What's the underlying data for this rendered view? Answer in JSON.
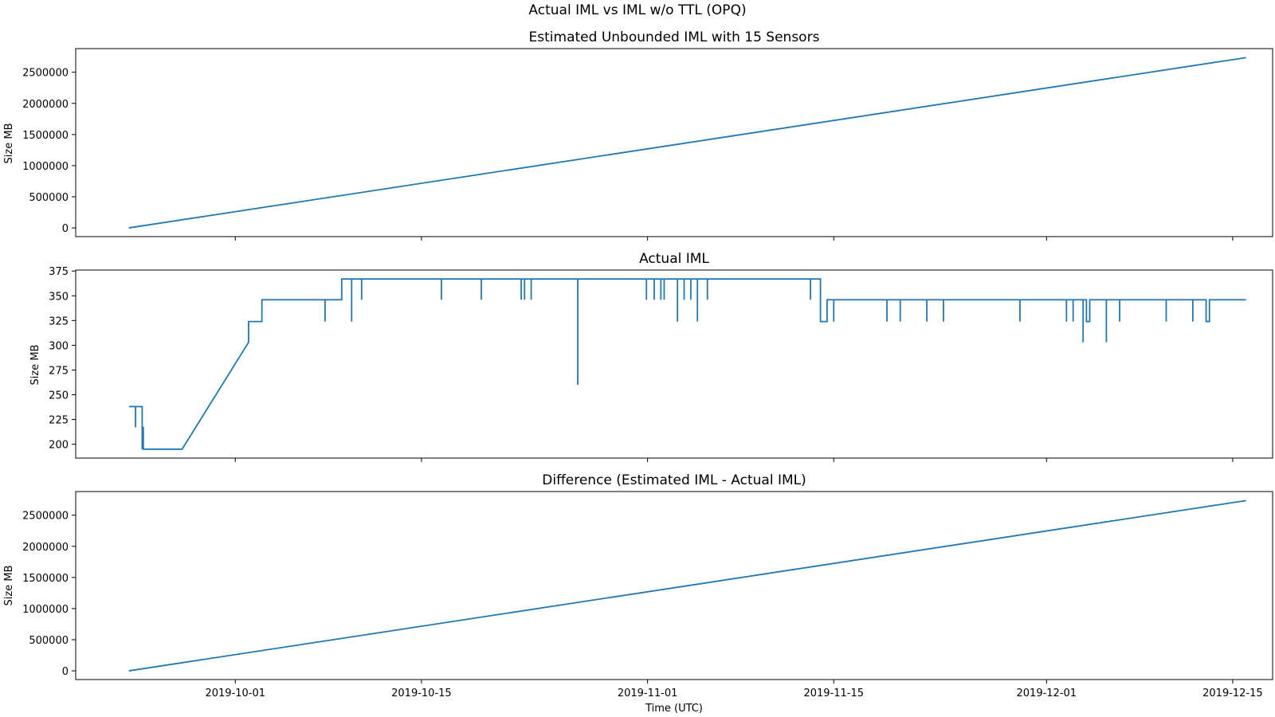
{
  "figure_title": "Actual IML vs IML w/o TTL (OPQ)",
  "xlabel": "Time (UTC)",
  "chart_data": [
    {
      "type": "line",
      "title": "Estimated Unbounded IML with 15 Sensors",
      "xlabel": "",
      "ylabel": "Size MB",
      "x_range": [
        "2019-09-19",
        "2019-12-18"
      ],
      "ylim": [
        -140000,
        2880000
      ],
      "yticks": [
        0,
        500000,
        1000000,
        1500000,
        2000000,
        2500000
      ],
      "xticks": [
        "2019-10-01",
        "2019-10-15",
        "2019-11-01",
        "2019-11-15",
        "2019-12-01",
        "2019-12-15"
      ],
      "show_xtick_labels": false,
      "grid": false,
      "series": [
        {
          "x": [
            "2019-09-23",
            "2019-12-16"
          ],
          "y": [
            0,
            2735000
          ]
        }
      ]
    },
    {
      "type": "line",
      "title": "Actual IML",
      "xlabel": "",
      "ylabel": "Size MB",
      "x_range": [
        "2019-09-19",
        "2019-12-18"
      ],
      "ylim": [
        186,
        376
      ],
      "yticks": [
        200,
        225,
        250,
        275,
        300,
        325,
        350,
        375
      ],
      "xticks": [
        "2019-10-01",
        "2019-10-15",
        "2019-11-01",
        "2019-11-15",
        "2019-12-01",
        "2019-12-15"
      ],
      "show_xtick_labels": false,
      "grid": false,
      "series": [
        {
          "x": [
            "2019-09-23",
            "2019-09-23 12:00",
            "2019-09-23 12:00",
            "2019-09-23 12:00",
            "2019-09-24",
            "2019-09-24",
            "2019-09-24",
            "2019-09-24 02:00",
            "2019-09-24 02:00",
            "2019-09-24 02:00",
            "2019-09-24 04:00",
            "2019-09-24 04:00",
            "2019-09-27",
            "2019-10-02",
            "2019-10-02",
            "2019-10-02",
            "2019-10-03",
            "2019-10-03",
            "2019-10-07 18:00",
            "2019-10-07 18:00",
            "2019-10-07 18:00",
            "2019-10-09",
            "2019-10-09",
            "2019-10-09 18:00",
            "2019-10-09 18:00",
            "2019-10-09 18:00",
            "2019-10-10 12:00",
            "2019-10-10 12:00",
            "2019-10-10 12:00",
            "2019-10-16 12:00",
            "2019-10-16 12:00",
            "2019-10-16 12:00",
            "2019-10-19 12:00",
            "2019-10-19 12:00",
            "2019-10-19 12:00",
            "2019-10-22 12:00",
            "2019-10-22 12:00",
            "2019-10-22 12:00",
            "2019-10-22 18:00",
            "2019-10-22 18:00",
            "2019-10-22 18:00",
            "2019-10-23 06:00",
            "2019-10-23 06:00",
            "2019-10-23 06:00",
            "2019-10-26 18:00",
            "2019-10-26 18:00",
            "2019-10-26 18:00",
            "2019-10-31 22:00",
            "2019-10-31 22:00",
            "2019-10-31 22:00",
            "2019-11-01 12:00",
            "2019-11-01 12:00",
            "2019-11-01 12:00",
            "2019-11-02",
            "2019-11-02",
            "2019-11-02",
            "2019-11-02 06:00",
            "2019-11-02 06:00",
            "2019-11-02 06:00",
            "2019-11-03 06:00",
            "2019-11-03 06:00",
            "2019-11-03 06:00",
            "2019-11-03 18:00",
            "2019-11-03 18:00",
            "2019-11-03 18:00",
            "2019-11-04 06:00",
            "2019-11-04 06:00",
            "2019-11-04 06:00",
            "2019-11-04 18:00",
            "2019-11-04 18:00",
            "2019-11-04 18:00",
            "2019-11-05 12:00",
            "2019-11-05 12:00",
            "2019-11-05 12:00",
            "2019-11-13 06:00",
            "2019-11-13 06:00",
            "2019-11-13 06:00",
            "2019-11-14",
            "2019-11-14",
            "2019-11-14 12:00",
            "2019-11-14 12:00",
            "2019-11-15",
            "2019-11-15",
            "2019-11-15",
            "2019-11-19",
            "2019-11-19",
            "2019-11-19",
            "2019-11-20",
            "2019-11-20",
            "2019-11-20",
            "2019-11-22",
            "2019-11-22",
            "2019-11-22",
            "2019-11-23 06:00",
            "2019-11-23 06:00",
            "2019-11-23 06:00",
            "2019-11-29",
            "2019-11-29",
            "2019-11-29",
            "2019-12-02 12:00",
            "2019-12-02 12:00",
            "2019-12-02 12:00",
            "2019-12-03",
            "2019-12-03",
            "2019-12-03",
            "2019-12-03 18:00",
            "2019-12-03 18:00",
            "2019-12-03 18:00",
            "2019-12-04",
            "2019-12-04",
            "2019-12-04 06:00",
            "2019-12-04 06:00",
            "2019-12-05 12:00",
            "2019-12-05 12:00",
            "2019-12-05 12:00",
            "2019-12-06 12:00",
            "2019-12-06 12:00",
            "2019-12-06 12:00",
            "2019-12-10",
            "2019-12-10",
            "2019-12-10",
            "2019-12-12",
            "2019-12-12",
            "2019-12-12",
            "2019-12-13",
            "2019-12-13",
            "2019-12-13 06:00",
            "2019-12-13 06:00",
            "2019-12-16"
          ],
          "y": [
            238,
            238,
            217,
            238,
            238,
            195,
            217,
            217,
            195,
            195,
            195,
            195,
            195,
            303,
            324,
            324,
            324,
            346,
            346,
            324,
            346,
            346,
            367,
            367,
            324,
            367,
            367,
            346,
            367,
            367,
            346,
            367,
            367,
            346,
            367,
            367,
            346,
            367,
            367,
            346,
            367,
            367,
            346,
            367,
            367,
            260,
            367,
            367,
            346,
            367,
            367,
            346,
            367,
            367,
            346,
            367,
            367,
            346,
            367,
            367,
            324,
            367,
            367,
            346,
            367,
            367,
            346,
            367,
            367,
            324,
            367,
            367,
            346,
            367,
            367,
            346,
            367,
            367,
            324,
            324,
            346,
            346,
            324,
            346,
            346,
            324,
            346,
            346,
            324,
            346,
            346,
            324,
            346,
            346,
            324,
            346,
            346,
            324,
            346,
            346,
            324,
            346,
            346,
            324,
            346,
            346,
            303,
            346,
            346,
            324,
            324,
            346,
            346,
            303,
            346,
            346,
            324,
            346,
            346,
            324,
            346,
            346,
            324,
            346,
            346,
            324,
            324,
            346,
            346
          ]
        }
      ]
    },
    {
      "type": "line",
      "title": "Difference (Estimated IML - Actual IML)",
      "xlabel": "Time (UTC)",
      "ylabel": "Size MB",
      "x_range": [
        "2019-09-19",
        "2019-12-18"
      ],
      "ylim": [
        -140000,
        2880000
      ],
      "yticks": [
        0,
        500000,
        1000000,
        1500000,
        2000000,
        2500000
      ],
      "xticks": [
        "2019-10-01",
        "2019-10-15",
        "2019-11-01",
        "2019-11-15",
        "2019-12-01",
        "2019-12-15"
      ],
      "show_xtick_labels": true,
      "grid": false,
      "series": [
        {
          "x": [
            "2019-09-23",
            "2019-12-16"
          ],
          "y": [
            0,
            2735000
          ]
        }
      ]
    }
  ]
}
